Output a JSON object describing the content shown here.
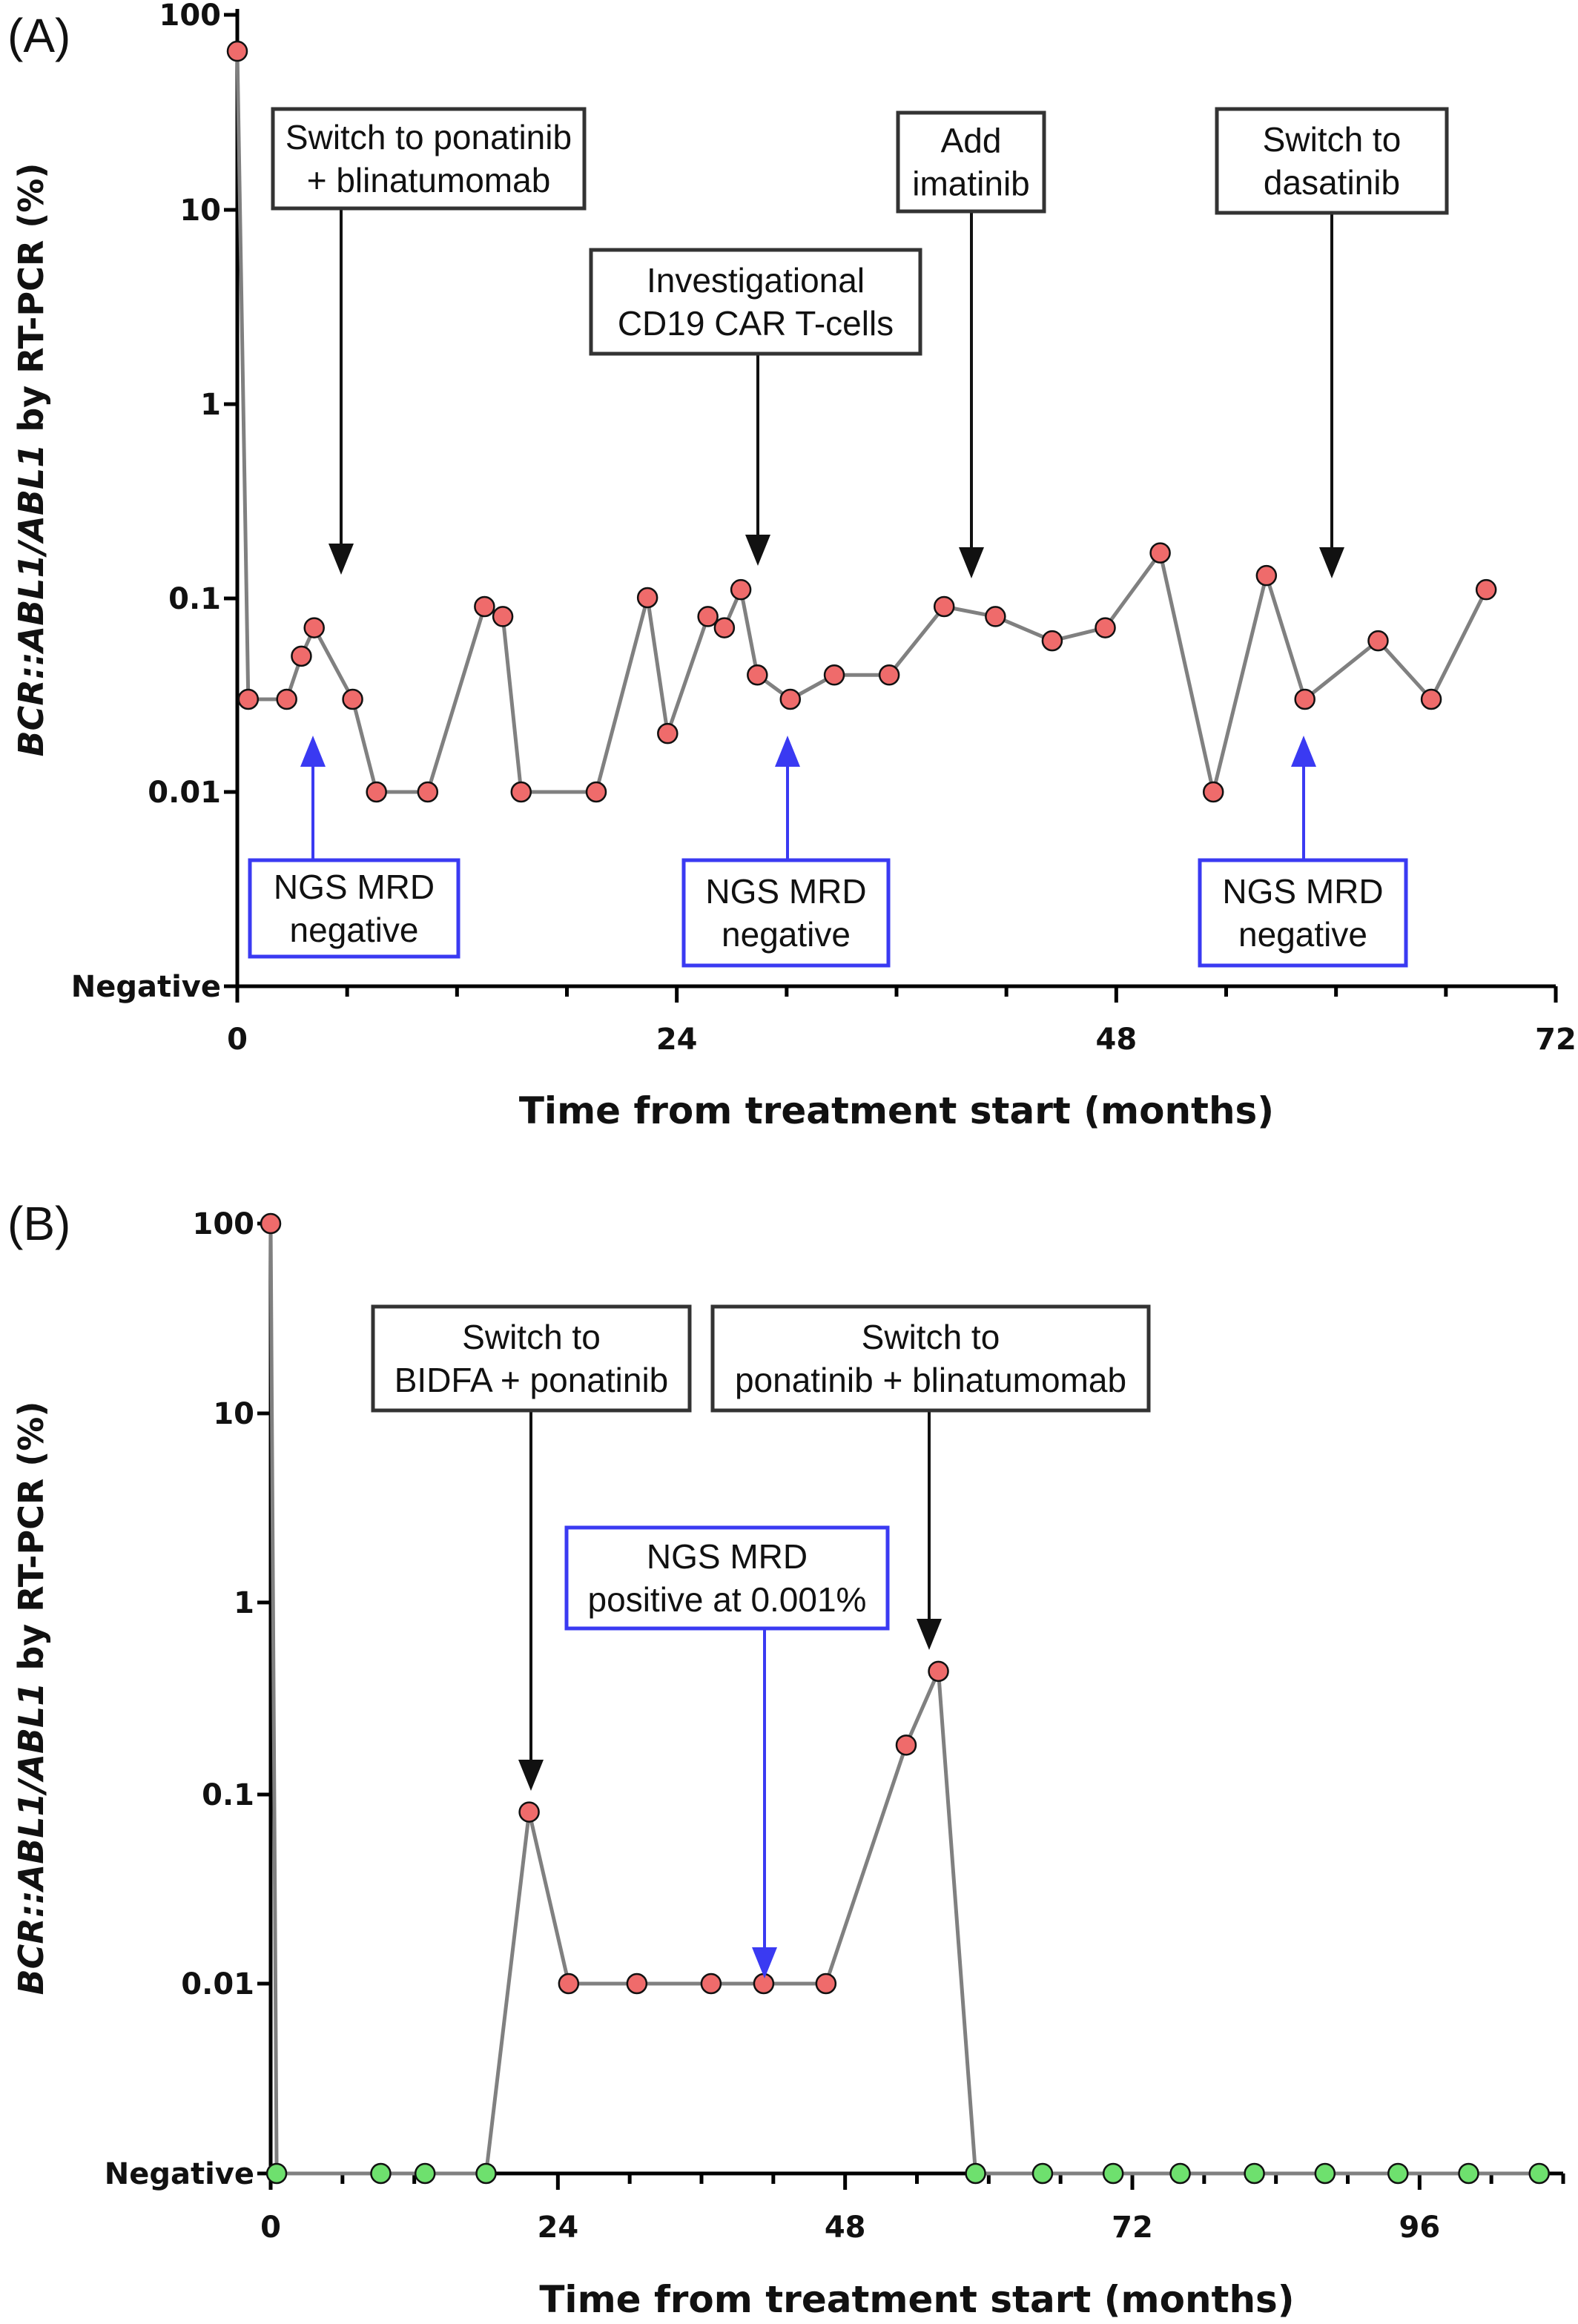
{
  "chart_data": [
    {
      "panel": "(A)",
      "type": "line",
      "scale": "log",
      "xlabel": "Time from treatment start (months)",
      "ylabel_italic": "BCR::ABL1/ABL1",
      "ylabel_rest": " by RT-PCR (%)",
      "xlim": [
        0,
        72
      ],
      "x_ticks": [
        "0",
        "24",
        "48",
        "72"
      ],
      "y_ticks": [
        "100",
        "10",
        "1",
        "0.1",
        "0.01",
        "Negative"
      ],
      "series": [
        {
          "color": "#ef6b6b",
          "points": [
            [
              0,
              65
            ],
            [
              0.6,
              0.03
            ],
            [
              2.7,
              0.03
            ],
            [
              3.5,
              0.05
            ],
            [
              4.2,
              0.07
            ],
            [
              6.3,
              0.03
            ],
            [
              7.6,
              0.01
            ],
            [
              10.4,
              0.01
            ],
            [
              13.5,
              0.09
            ],
            [
              14.5,
              0.08
            ],
            [
              15.5,
              0.01
            ],
            [
              19.6,
              0.01
            ],
            [
              22.4,
              0.1
            ],
            [
              23.5,
              0.02
            ],
            [
              25.7,
              0.08
            ],
            [
              26.6,
              0.07
            ],
            [
              27.5,
              0.11
            ],
            [
              28.4,
              0.04
            ],
            [
              30.2,
              0.03
            ],
            [
              32.6,
              0.04
            ],
            [
              35.6,
              0.04
            ],
            [
              38.6,
              0.09
            ],
            [
              41.4,
              0.08
            ],
            [
              44.5,
              0.06
            ],
            [
              47.4,
              0.07
            ],
            [
              50.4,
              0.17
            ],
            [
              53.3,
              0.01
            ],
            [
              56.2,
              0.13
            ],
            [
              58.3,
              0.03
            ],
            [
              62.3,
              0.06
            ],
            [
              65.2,
              0.03
            ],
            [
              68.2,
              0.11
            ]
          ]
        }
      ],
      "annotations": [
        {
          "lines": [
            "Switch to ponatinib",
            "+ blinatumomab"
          ],
          "color": "black"
        },
        {
          "lines": [
            "Investigational",
            "CD19 CAR T-cells"
          ],
          "color": "black"
        },
        {
          "lines": [
            "Add",
            "imatinib"
          ],
          "color": "black"
        },
        {
          "lines": [
            "Switch to",
            "dasatinib"
          ],
          "color": "black"
        },
        {
          "lines": [
            "NGS MRD",
            "negative"
          ],
          "color": "blue"
        },
        {
          "lines": [
            "NGS MRD",
            "negative"
          ],
          "color": "blue"
        },
        {
          "lines": [
            "NGS MRD",
            "negative"
          ],
          "color": "blue"
        }
      ]
    },
    {
      "panel": "(B)",
      "type": "line",
      "scale": "log",
      "xlabel": "Time from treatment start (months)",
      "ylabel_italic": "BCR::ABL1/ABL1",
      "ylabel_rest": " by RT-PCR (%)",
      "xlim": [
        0,
        108
      ],
      "x_ticks": [
        "0",
        "24",
        "48",
        "72",
        "96"
      ],
      "y_ticks": [
        "100",
        "10",
        "1",
        "0.1",
        "0.01",
        "Negative"
      ],
      "series": [
        {
          "color": "#ef6b6b",
          "points": [
            [
              0,
              100
            ],
            [
              21.6,
              0.08
            ],
            [
              24.9,
              0.01
            ],
            [
              30.6,
              0.01
            ],
            [
              36.8,
              0.01
            ],
            [
              41.2,
              0.01
            ],
            [
              46.4,
              0.01
            ],
            [
              53.1,
              0.18
            ],
            [
              55.8,
              0.44
            ]
          ]
        },
        {
          "color": "#6ee06e",
          "points": [
            [
              0.5,
              "Negative"
            ],
            [
              9.2,
              "Negative"
            ],
            [
              12.9,
              "Negative"
            ],
            [
              18.0,
              "Negative"
            ],
            [
              58.9,
              "Negative"
            ],
            [
              64.5,
              "Negative"
            ],
            [
              70.4,
              "Negative"
            ],
            [
              76.0,
              "Negative"
            ],
            [
              82.2,
              "Negative"
            ],
            [
              88.1,
              "Negative"
            ],
            [
              94.2,
              "Negative"
            ],
            [
              100.1,
              "Negative"
            ],
            [
              106.0,
              "Negative"
            ]
          ]
        }
      ],
      "annotations": [
        {
          "lines": [
            "Switch to",
            "BIDFA + ponatinib"
          ],
          "color": "black"
        },
        {
          "lines": [
            "Switch to",
            "ponatinib + blinatumomab"
          ],
          "color": "black"
        },
        {
          "lines": [
            "NGS MRD",
            "positive at 0.001%"
          ],
          "color": "blue"
        }
      ]
    }
  ]
}
